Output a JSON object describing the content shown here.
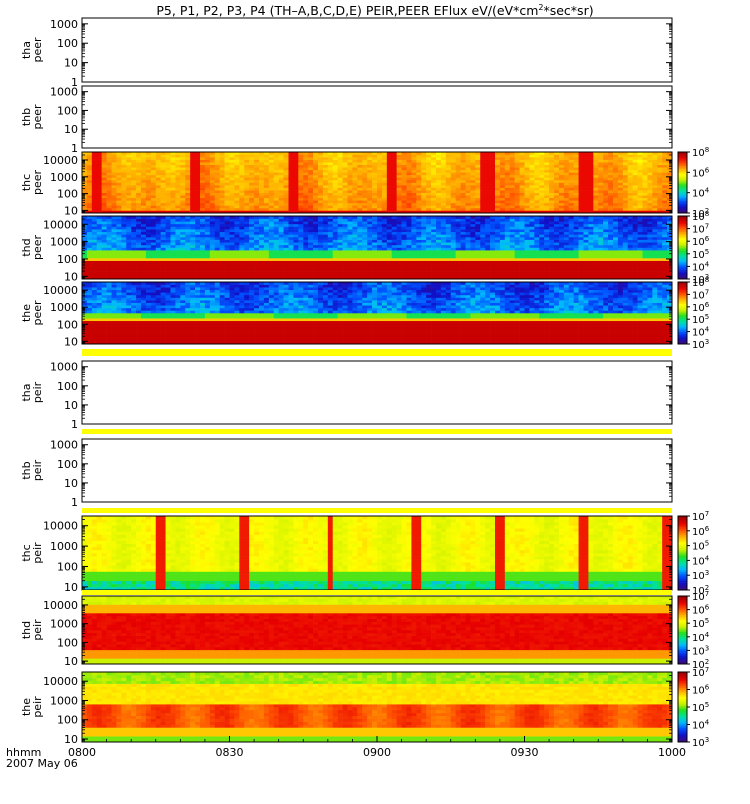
{
  "chart_data": {
    "type": "heatmap",
    "title_main": "P5, P1, P2, P3, P4 (TH–A,B,C,D,E) PEIR,PEER EFlux eV/(eV*cm",
    "title_sup": "2",
    "title_tail": "*sec*sr)",
    "x_tick_labels": [
      "0800",
      "0830",
      "0900",
      "0930",
      "1000"
    ],
    "x_range": [
      "0800",
      "1000"
    ],
    "x_axis_label": "hhmm",
    "date_label": "2007 May 06",
    "y_scale": "log",
    "panels": [
      {
        "probe": "tha",
        "product": "peer",
        "has_data": false,
        "ylim": [
          1,
          2000
        ],
        "y_ticks": [
          "1000",
          "100",
          "10",
          "1"
        ],
        "colorbar": null
      },
      {
        "probe": "thb",
        "product": "peer",
        "has_data": false,
        "ylim": [
          1,
          2000
        ],
        "y_ticks": [
          "1000",
          "100",
          "10",
          "1"
        ],
        "colorbar": null
      },
      {
        "probe": "thc",
        "product": "peer",
        "has_data": true,
        "ylim": [
          7,
          30000
        ],
        "y_ticks": [
          "10000",
          "1000",
          "100",
          "10"
        ],
        "colorbar": {
          "min_exp": 2,
          "max_exp": 8,
          "labels": [
            "8",
            "6",
            "4",
            "2"
          ]
        },
        "spectrum_profile": "thc_peer"
      },
      {
        "probe": "thd",
        "product": "peer",
        "has_data": true,
        "ylim": [
          7,
          30000
        ],
        "y_ticks": [
          "10000",
          "1000",
          "100",
          "10"
        ],
        "colorbar": {
          "min_exp": 3,
          "max_exp": 8,
          "labels": [
            "8",
            "7",
            "6",
            "5",
            "4",
            "3"
          ]
        },
        "spectrum_profile": "thd_peer"
      },
      {
        "probe": "the",
        "product": "peer",
        "has_data": true,
        "ylim": [
          7,
          30000
        ],
        "y_ticks": [
          "10000",
          "1000",
          "100",
          "10"
        ],
        "colorbar": {
          "min_exp": 3,
          "max_exp": 8,
          "labels": [
            "8",
            "7",
            "6",
            "5",
            "4",
            "3"
          ]
        },
        "spectrum_profile": "the_peer"
      },
      {
        "probe": "tha",
        "product": "peir",
        "has_data": false,
        "ylim": [
          1,
          2000
        ],
        "y_ticks": [
          "1000",
          "100",
          "10",
          "1"
        ],
        "colorbar": null
      },
      {
        "probe": "thb",
        "product": "peir",
        "has_data": false,
        "ylim": [
          1,
          2000
        ],
        "y_ticks": [
          "1000",
          "100",
          "10",
          "1"
        ],
        "colorbar": null
      },
      {
        "probe": "thc",
        "product": "peir",
        "has_data": true,
        "ylim": [
          7,
          30000
        ],
        "y_ticks": [
          "10000",
          "1000",
          "100",
          "10"
        ],
        "colorbar": {
          "min_exp": 2,
          "max_exp": 7,
          "labels": [
            "7",
            "6",
            "5",
            "4",
            "3",
            "2"
          ]
        },
        "spectrum_profile": "thc_peir"
      },
      {
        "probe": "thd",
        "product": "peir",
        "has_data": true,
        "ylim": [
          7,
          30000
        ],
        "y_ticks": [
          "10000",
          "1000",
          "100",
          "10"
        ],
        "colorbar": {
          "min_exp": 2,
          "max_exp": 7,
          "labels": [
            "7",
            "6",
            "5",
            "4",
            "3",
            "2"
          ]
        },
        "spectrum_profile": "thd_peir"
      },
      {
        "probe": "the",
        "product": "peir",
        "has_data": true,
        "ylim": [
          7,
          30000
        ],
        "y_ticks": [
          "10000",
          "1000",
          "100",
          "10"
        ],
        "colorbar": {
          "min_exp": 3,
          "max_exp": 7,
          "labels": [
            "7",
            "6",
            "5",
            "4",
            "3"
          ]
        },
        "spectrum_profile": "the_peir"
      }
    ],
    "separator_color": "#ffff00",
    "colormap": [
      "#3a0a7e",
      "#1010c8",
      "#0050ff",
      "#00b8ff",
      "#00e0a0",
      "#20e020",
      "#c8f000",
      "#ffff00",
      "#ffb000",
      "#ff5000",
      "#e80000",
      "#a00000"
    ]
  }
}
